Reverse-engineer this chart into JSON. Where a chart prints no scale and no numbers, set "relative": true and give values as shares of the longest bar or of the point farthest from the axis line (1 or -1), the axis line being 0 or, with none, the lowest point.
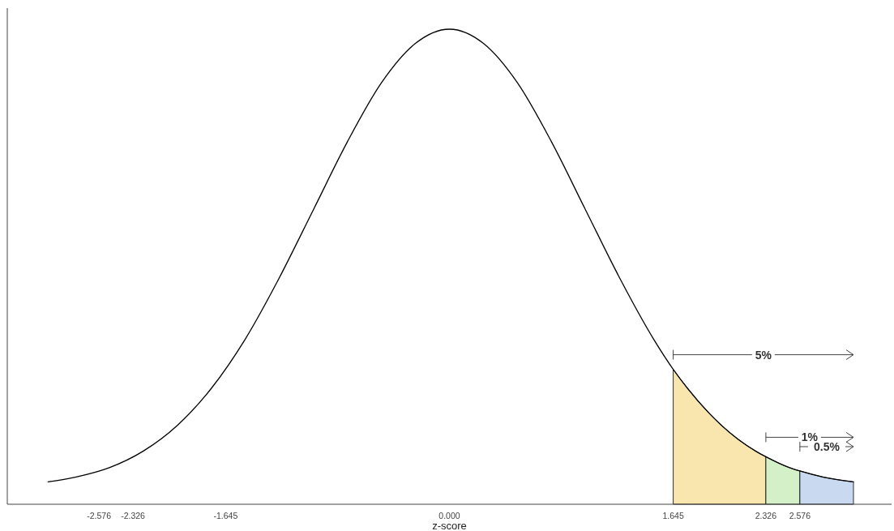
{
  "chart_data": {
    "type": "line",
    "relative": true,
    "xlabel": "z-score",
    "xlim": [
      -3.25,
      3.25
    ],
    "xticks": [
      -2.576,
      -2.326,
      -1.645,
      {
        "value": 0,
        "label": "0.000"
      },
      1.645,
      2.326,
      2.576
    ],
    "grid": false,
    "marker": "none",
    "line_style": "solid",
    "series": [
      {
        "type": "area",
        "color": "#f9e6ae",
        "x": [
          1.645,
          1.75,
          2.0,
          2.25,
          2.326
        ],
        "values": [
          0.284,
          0.244,
          0.166,
          0.112,
          0.1
        ]
      },
      {
        "type": "area",
        "color": "#d4f0c8",
        "x": [
          2.326,
          2.5,
          2.576
        ],
        "values": [
          0.1,
          0.077,
          0.07
        ]
      },
      {
        "type": "area",
        "color": "#c9d9f0",
        "x": [
          2.576,
          2.75,
          2.97
        ],
        "values": [
          0.07,
          0.057,
          0.047
        ]
      },
      {
        "color": "#000000",
        "x": [
          -2.95,
          -2.75,
          -2.5,
          -2.25,
          -2.0,
          -1.75,
          -1.5,
          -1.25,
          -1.0,
          -0.75,
          -0.5,
          -0.25,
          0,
          0.25,
          0.5,
          0.75,
          1.0,
          1.25,
          1.5,
          1.645,
          1.75,
          2.0,
          2.25,
          2.326,
          2.5,
          2.576,
          2.75,
          2.97
        ],
        "values": [
          0.047,
          0.057,
          0.077,
          0.112,
          0.166,
          0.244,
          0.348,
          0.477,
          0.62,
          0.763,
          0.887,
          0.97,
          1,
          0.97,
          0.887,
          0.763,
          0.62,
          0.477,
          0.348,
          0.284,
          0.244,
          0.166,
          0.112,
          0.1,
          0.077,
          0.07,
          0.057,
          0.047
        ]
      }
    ],
    "annotations": [
      "5%",
      "1%",
      "0.5%"
    ]
  }
}
